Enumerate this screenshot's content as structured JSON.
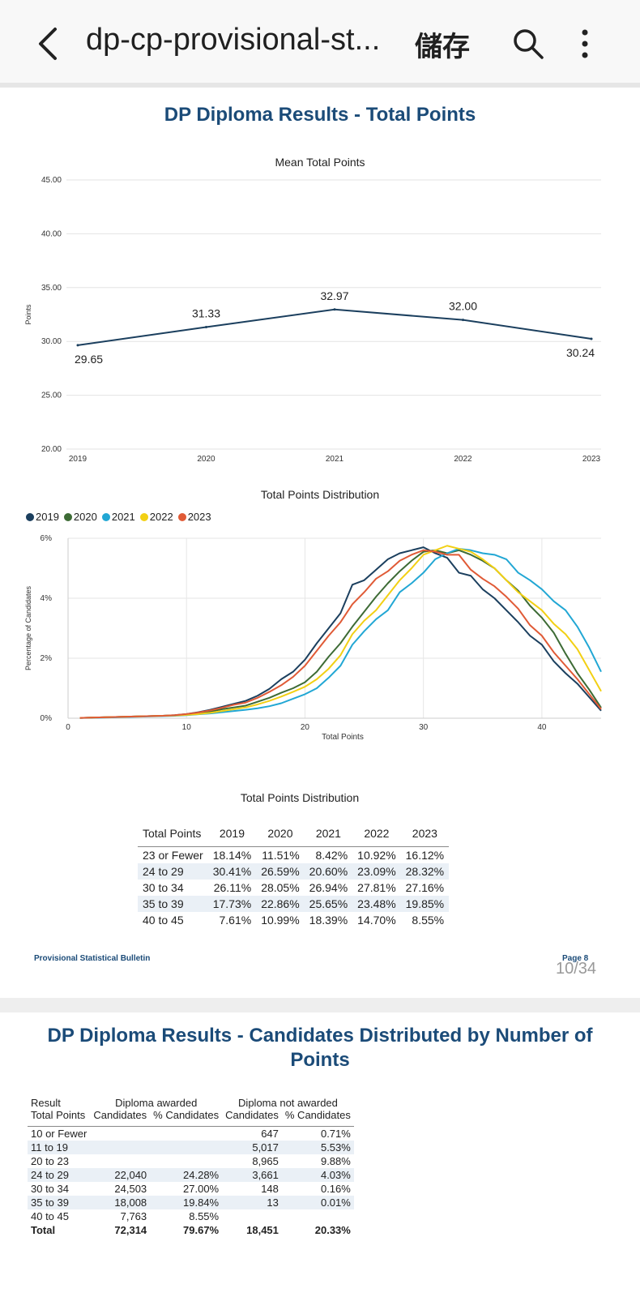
{
  "app_bar": {
    "title": "dp-cp-provisional-st...",
    "save_label": "儲存"
  },
  "page1": {
    "heading": "DP Diploma Results - Total Points",
    "footer_left": "Provisional Statistical Bulletin",
    "footer_right": "Page 8",
    "page_counter": "10/34"
  },
  "chart_data": [
    {
      "type": "line",
      "title": "Mean Total Points",
      "ylabel": "Points",
      "xlabel": "",
      "ylim": [
        20,
        45
      ],
      "yticks": [
        "20.00",
        "25.00",
        "30.00",
        "35.00",
        "40.00",
        "45.00"
      ],
      "categories": [
        "2019",
        "2020",
        "2021",
        "2022",
        "2023"
      ],
      "values": [
        29.65,
        31.33,
        32.97,
        32.0,
        30.24
      ],
      "data_labels": [
        "29.65",
        "31.33",
        "32.97",
        "32.00",
        "30.24"
      ],
      "color": "#1b3f5e",
      "grid": true
    },
    {
      "type": "line",
      "title": "Total Points Distribution",
      "xlabel": "Total Points",
      "ylabel": "Percentage of Candidates",
      "xlim": [
        0,
        45
      ],
      "ylim": [
        0,
        6
      ],
      "xticks": [
        0,
        10,
        20,
        30,
        40
      ],
      "yticks": [
        "0%",
        "2%",
        "4%",
        "6%"
      ],
      "legend": "top-left",
      "x": [
        1,
        2,
        3,
        4,
        5,
        6,
        7,
        8,
        9,
        10,
        11,
        12,
        13,
        14,
        15,
        16,
        17,
        18,
        19,
        20,
        21,
        22,
        23,
        24,
        25,
        26,
        27,
        28,
        29,
        30,
        31,
        32,
        33,
        34,
        35,
        36,
        37,
        38,
        39,
        40,
        41,
        42,
        43,
        44,
        45
      ],
      "series": [
        {
          "name": "2019",
          "color": "#1b3f5e",
          "values": [
            0.01,
            0.02,
            0.03,
            0.04,
            0.05,
            0.06,
            0.07,
            0.08,
            0.1,
            0.14,
            0.2,
            0.28,
            0.38,
            0.48,
            0.58,
            0.75,
            0.98,
            1.3,
            1.55,
            1.95,
            2.5,
            3.0,
            3.5,
            4.45,
            4.6,
            4.95,
            5.3,
            5.5,
            5.6,
            5.7,
            5.5,
            5.35,
            4.85,
            4.75,
            4.3,
            4.0,
            3.6,
            3.2,
            2.75,
            2.45,
            1.9,
            1.5,
            1.15,
            0.7,
            0.25
          ]
        },
        {
          "name": "2020",
          "color": "#3d6b35",
          "values": [
            0.01,
            0.02,
            0.03,
            0.04,
            0.05,
            0.06,
            0.07,
            0.08,
            0.09,
            0.12,
            0.16,
            0.22,
            0.3,
            0.36,
            0.42,
            0.55,
            0.68,
            0.85,
            1.0,
            1.2,
            1.55,
            2.05,
            2.5,
            3.05,
            3.55,
            4.05,
            4.5,
            4.9,
            5.25,
            5.55,
            5.6,
            5.5,
            5.6,
            5.45,
            5.25,
            5.0,
            4.6,
            4.25,
            3.75,
            3.35,
            2.85,
            2.15,
            1.5,
            0.95,
            0.35
          ]
        },
        {
          "name": "2021",
          "color": "#22a7d4",
          "values": [
            0.01,
            0.01,
            0.02,
            0.03,
            0.04,
            0.05,
            0.06,
            0.07,
            0.08,
            0.1,
            0.13,
            0.16,
            0.2,
            0.24,
            0.28,
            0.33,
            0.4,
            0.5,
            0.65,
            0.8,
            1.0,
            1.35,
            1.75,
            2.45,
            2.9,
            3.3,
            3.6,
            4.2,
            4.5,
            4.85,
            5.3,
            5.5,
            5.65,
            5.6,
            5.5,
            5.45,
            5.3,
            4.85,
            4.6,
            4.3,
            3.9,
            3.6,
            3.05,
            2.35,
            1.55
          ]
        },
        {
          "name": "2022",
          "color": "#f2d014",
          "values": [
            0.01,
            0.02,
            0.03,
            0.04,
            0.05,
            0.06,
            0.07,
            0.08,
            0.09,
            0.11,
            0.14,
            0.18,
            0.24,
            0.3,
            0.36,
            0.46,
            0.58,
            0.72,
            0.88,
            1.05,
            1.3,
            1.65,
            2.1,
            2.8,
            3.25,
            3.6,
            4.1,
            4.6,
            5.0,
            5.45,
            5.6,
            5.75,
            5.65,
            5.55,
            5.3,
            5.0,
            4.6,
            4.2,
            3.9,
            3.6,
            3.15,
            2.8,
            2.3,
            1.6,
            0.9
          ]
        },
        {
          "name": "2023",
          "color": "#e05a36",
          "values": [
            0.01,
            0.02,
            0.03,
            0.04,
            0.05,
            0.06,
            0.07,
            0.08,
            0.1,
            0.14,
            0.19,
            0.26,
            0.35,
            0.45,
            0.52,
            0.68,
            0.88,
            1.1,
            1.38,
            1.75,
            2.25,
            2.75,
            3.2,
            3.8,
            4.2,
            4.65,
            4.9,
            5.25,
            5.45,
            5.6,
            5.55,
            5.45,
            5.45,
            4.95,
            4.65,
            4.4,
            4.05,
            3.65,
            3.1,
            2.75,
            2.2,
            1.75,
            1.3,
            0.8,
            0.3
          ]
        }
      ],
      "grid": true
    }
  ],
  "dist_table": {
    "caption": "Total Points Distribution",
    "headers": [
      "Total Points",
      "2019",
      "2020",
      "2021",
      "2022",
      "2023"
    ],
    "rows": [
      [
        "23 or Fewer",
        "18.14%",
        "11.51%",
        "8.42%",
        "10.92%",
        "16.12%"
      ],
      [
        "24 to 29",
        "30.41%",
        "26.59%",
        "20.60%",
        "23.09%",
        "28.32%"
      ],
      [
        "30 to 34",
        "26.11%",
        "28.05%",
        "26.94%",
        "27.81%",
        "27.16%"
      ],
      [
        "35 to 39",
        "17.73%",
        "22.86%",
        "25.65%",
        "23.48%",
        "19.85%"
      ],
      [
        "40 to 45",
        "7.61%",
        "10.99%",
        "18.39%",
        "14.70%",
        "8.55%"
      ]
    ]
  },
  "page2": {
    "heading": "DP Diploma Results - Candidates Distributed by Number of Points",
    "table": {
      "group_headers": [
        "Result",
        "Diploma awarded",
        "Diploma not awarded"
      ],
      "headers": [
        "Total Points",
        "Candidates",
        "% Candidates",
        "Candidates",
        "% Candidates"
      ],
      "rows": [
        [
          "10 or Fewer",
          "",
          "",
          "647",
          "0.71%"
        ],
        [
          "11 to 19",
          "",
          "",
          "5,017",
          "5.53%"
        ],
        [
          "20 to 23",
          "",
          "",
          "8,965",
          "9.88%"
        ],
        [
          "24 to 29",
          "22,040",
          "24.28%",
          "3,661",
          "4.03%"
        ],
        [
          "30 to 34",
          "24,503",
          "27.00%",
          "148",
          "0.16%"
        ],
        [
          "35 to 39",
          "18,008",
          "19.84%",
          "13",
          "0.01%"
        ],
        [
          "40 to 45",
          "7,763",
          "8.55%",
          "",
          ""
        ]
      ],
      "total": [
        "Total",
        "72,314",
        "79.67%",
        "18,451",
        "20.33%"
      ]
    }
  }
}
